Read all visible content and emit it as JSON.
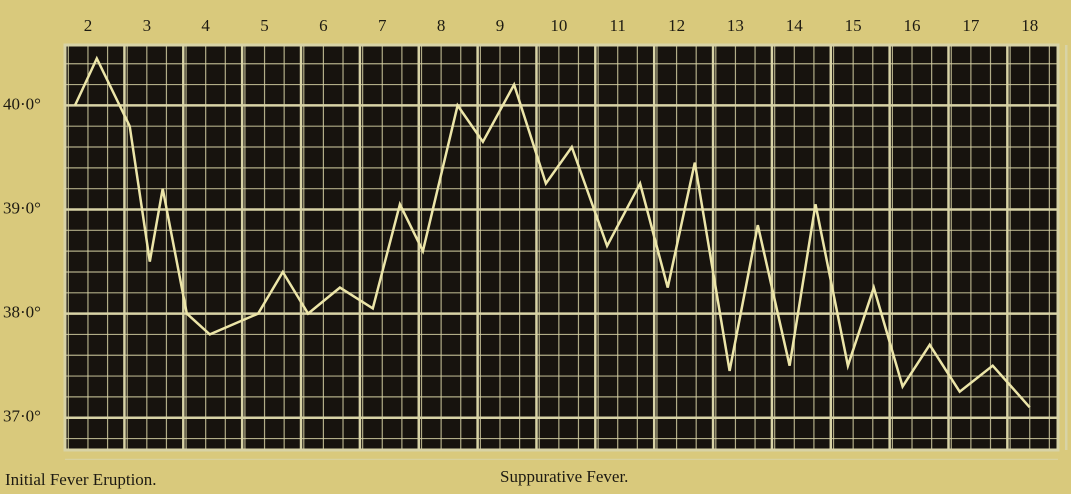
{
  "chart_data": {
    "type": "line",
    "x": [
      1.78,
      2.15,
      2.71,
      3.05,
      3.27,
      3.68,
      4.07,
      4.89,
      5.31,
      5.74,
      6.28,
      6.84,
      7.3,
      7.69,
      8.28,
      8.71,
      9.24,
      9.78,
      10.22,
      10.82,
      11.38,
      11.85,
      12.31,
      12.9,
      13.38,
      13.92,
      14.36,
      14.91,
      15.35,
      15.84,
      16.3,
      16.81,
      17.37,
      18.0
    ],
    "values": [
      40.0,
      40.45,
      39.8,
      38.5,
      39.2,
      38.0,
      37.8,
      38.0,
      38.4,
      38.0,
      38.25,
      38.05,
      39.05,
      38.6,
      40.0,
      39.65,
      40.2,
      39.25,
      39.6,
      38.65,
      39.25,
      38.25,
      39.45,
      37.45,
      38.85,
      37.5,
      39.05,
      37.5,
      38.25,
      37.3,
      37.7,
      37.25,
      37.5,
      37.1
    ],
    "color": "#ece5a8",
    "xlim": [
      1.61,
      18.48
    ],
    "xticks": [
      2,
      3,
      4,
      5,
      6,
      7,
      8,
      9,
      10,
      11,
      12,
      13,
      14,
      15,
      16,
      17,
      18
    ],
    "ylim": [
      36.69,
      40.58
    ],
    "yticks": [
      {
        "value": 37,
        "label": "37·0°"
      },
      {
        "value": 38,
        "label": "38·0°"
      },
      {
        "value": 39,
        "label": "39·0°"
      },
      {
        "value": 40,
        "label": "40·0°"
      }
    ],
    "grid": true,
    "annotations": [
      "Initial Fever Eruption.",
      "Suppurative Fever."
    ]
  }
}
